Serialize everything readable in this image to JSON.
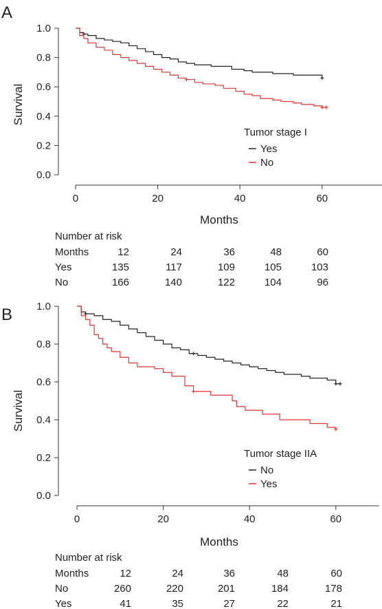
{
  "colors": {
    "black": "#222222",
    "red": "#e8322e"
  },
  "panels": [
    {
      "letter": "A",
      "chart_data": {
        "type": "line",
        "ylabel": "Survival",
        "xlabel": "Months",
        "xlim": [
          0,
          75
        ],
        "ylim": [
          0,
          1.0
        ],
        "xticks": [
          0,
          20,
          40,
          60
        ],
        "yticks": [
          "0.0",
          "0.2",
          "0.4",
          "0.6",
          "0.8",
          "1.0"
        ],
        "legend_title": "Tumor stage I",
        "legend_position": "right",
        "series": [
          {
            "name": "Yes",
            "color": "#222222",
            "x": [
              0,
              1,
              2,
              3,
              5,
              7,
              9,
              11,
              13,
              15,
              17,
              19,
              21,
              23,
              25,
              27,
              29,
              33,
              38,
              41,
              43,
              45,
              48,
              50,
              53,
              56,
              59,
              60
            ],
            "y": [
              1.0,
              0.97,
              0.96,
              0.95,
              0.93,
              0.92,
              0.91,
              0.9,
              0.88,
              0.86,
              0.84,
              0.82,
              0.8,
              0.79,
              0.77,
              0.76,
              0.75,
              0.74,
              0.72,
              0.71,
              0.7,
              0.7,
              0.69,
              0.69,
              0.68,
              0.68,
              0.68,
              0.66
            ],
            "censor_x": [
              2,
              60
            ]
          },
          {
            "name": "No",
            "color": "#e8322e",
            "x": [
              0,
              1,
              2,
              3,
              5,
              7,
              9,
              11,
              13,
              15,
              17,
              19,
              21,
              23,
              25,
              27,
              29,
              31,
              34,
              36,
              39,
              41,
              43,
              45,
              48,
              50,
              53,
              55,
              58,
              60
            ],
            "y": [
              1.0,
              0.95,
              0.93,
              0.9,
              0.87,
              0.85,
              0.82,
              0.8,
              0.78,
              0.76,
              0.74,
              0.72,
              0.7,
              0.68,
              0.66,
              0.65,
              0.63,
              0.62,
              0.61,
              0.59,
              0.57,
              0.55,
              0.54,
              0.52,
              0.51,
              0.5,
              0.49,
              0.48,
              0.47,
              0.46
            ],
            "censor_x": [
              27,
              60,
              61
            ]
          }
        ]
      },
      "risk_table": {
        "title": "Number at risk",
        "header": "Months",
        "months": [
          "12",
          "24",
          "36",
          "48",
          "60"
        ],
        "rows": [
          {
            "label": "Yes",
            "values": [
              "135",
              "117",
              "109",
              "105",
              "103"
            ]
          },
          {
            "label": "No",
            "values": [
              "166",
              "140",
              "122",
              "104",
              "96"
            ]
          }
        ]
      }
    },
    {
      "letter": "B",
      "chart_data": {
        "type": "line",
        "ylabel": "Survival",
        "xlabel": "Months",
        "xlim": [
          0,
          70
        ],
        "ylim": [
          0,
          1.0
        ],
        "xticks": [
          0,
          20,
          40,
          60
        ],
        "yticks": [
          "0.0",
          "0.2",
          "0.4",
          "0.6",
          "0.8",
          "1.0"
        ],
        "legend_title": "Tumor stage IIA",
        "legend_position": "right",
        "series": [
          {
            "name": "No",
            "color": "#222222",
            "x": [
              0,
              1,
              2,
              4,
              6,
              8,
              10,
              12,
              14,
              16,
              18,
              20,
              22,
              24,
              26,
              28,
              30,
              32,
              34,
              36,
              38,
              40,
              42,
              44,
              46,
              48,
              50,
              52,
              54,
              56,
              58,
              60
            ],
            "y": [
              1.0,
              0.97,
              0.96,
              0.95,
              0.93,
              0.92,
              0.9,
              0.88,
              0.86,
              0.84,
              0.82,
              0.8,
              0.78,
              0.77,
              0.75,
              0.74,
              0.73,
              0.72,
              0.71,
              0.7,
              0.69,
              0.68,
              0.67,
              0.66,
              0.65,
              0.64,
              0.64,
              0.63,
              0.62,
              0.62,
              0.61,
              0.59
            ],
            "censor_x": [
              2,
              27,
              60,
              61
            ]
          },
          {
            "name": "Yes",
            "color": "#e8322e",
            "x": [
              0,
              1,
              2,
              3,
              4,
              5,
              6,
              7,
              8,
              10,
              12,
              14,
              16,
              18,
              20,
              22,
              25,
              27,
              31,
              35,
              36,
              37,
              39,
              43,
              47,
              49,
              51,
              54,
              56,
              58,
              60
            ],
            "y": [
              1.0,
              0.95,
              0.93,
              0.9,
              0.85,
              0.83,
              0.8,
              0.78,
              0.76,
              0.73,
              0.7,
              0.68,
              0.68,
              0.67,
              0.65,
              0.63,
              0.58,
              0.55,
              0.53,
              0.53,
              0.5,
              0.47,
              0.45,
              0.43,
              0.4,
              0.4,
              0.4,
              0.38,
              0.38,
              0.36,
              0.35
            ],
            "censor_x": [
              27,
              60
            ]
          }
        ]
      },
      "risk_table": {
        "title": "Number at risk",
        "header": "Months",
        "months": [
          "12",
          "24",
          "36",
          "48",
          "60"
        ],
        "rows": [
          {
            "label": "No",
            "values": [
              "260",
              "220",
              "201",
              "184",
              "178"
            ]
          },
          {
            "label": "Yes",
            "values": [
              "41",
              "35",
              "27",
              "22",
              "21"
            ]
          }
        ]
      }
    }
  ]
}
